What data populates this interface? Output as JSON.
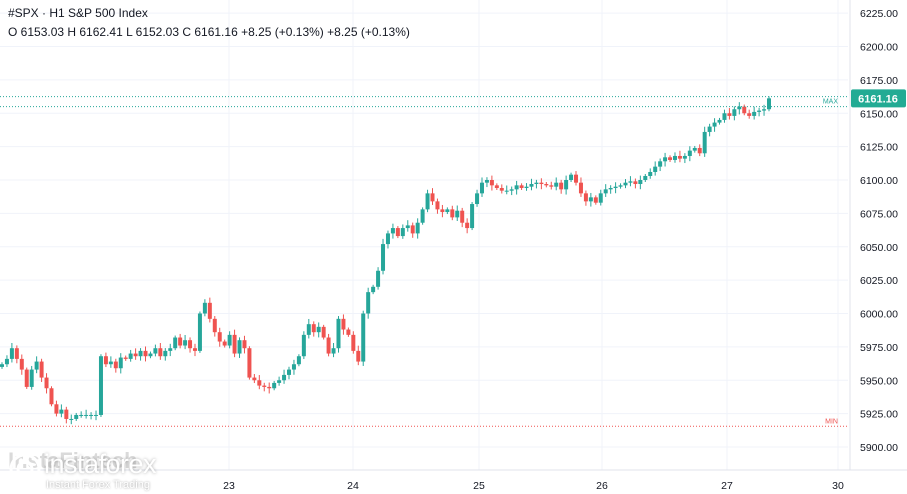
{
  "header": {
    "title": "#SPX · H1 S&P 500 Index",
    "ohlc": "O 6153.03 H 6162.41 L 6152.03 C 6161.16 +8.25 (+0.13%) +8.25 (+0.13%)"
  },
  "price_tag": "6161.16",
  "max_label": "MAX",
  "min_label": "MIN",
  "watermark": {
    "faded_text": "InstaFintech",
    "brand": "instaforex",
    "tagline": "Instant Forex Trading"
  },
  "colors": {
    "up": "#26a69a",
    "down": "#ef5350",
    "tag": "#22ab94",
    "grid": "#f0f3fa"
  },
  "chart_data": {
    "type": "candlestick",
    "y_ticks": [
      5900,
      5925,
      5950,
      5975,
      6000,
      6025,
      6050,
      6075,
      6100,
      6125,
      6150,
      6175,
      6200,
      6225
    ],
    "y_tick_labels": [
      "5900.00",
      "5925.00",
      "5950.00",
      "5975.00",
      "6000.00",
      "6025.00",
      "6050.00",
      "6075.00",
      "6100.00",
      "6125.00",
      "6150.00",
      "6175.00",
      "6200.00",
      "6225.00"
    ],
    "ylim": [
      5886,
      6234
    ],
    "x_labels": [
      "23",
      "24",
      "25",
      "26",
      "27",
      "30"
    ],
    "last_close": 6161.16,
    "max": 6162.41,
    "min": 5915.5,
    "max_line_2": 6155,
    "close_series": [
      5962,
      5966,
      5974,
      5966,
      5958,
      5945,
      5958,
      5964,
      5952,
      5944,
      5932,
      5925,
      5928,
      5921,
      5921,
      5924,
      5924,
      5924,
      5924,
      5924,
      5968,
      5962,
      5964,
      5959,
      5967,
      5966,
      5970,
      5968,
      5972,
      5968,
      5970,
      5974,
      5968,
      5972,
      5974,
      5982,
      5976,
      5980,
      5974,
      5972,
      6000,
      6008,
      5996,
      5986,
      5979,
      5976,
      5984,
      5970,
      5980,
      5974,
      5952,
      5950,
      5946,
      5945,
      5944,
      5948,
      5950,
      5954,
      5958,
      5962,
      5968,
      5984,
      5992,
      5986,
      5990,
      5982,
      5970,
      5974,
      5996,
      5988,
      5984,
      5972,
      5964,
      6000,
      6016,
      6020,
      6032,
      6052,
      6060,
      6064,
      6058,
      6064,
      6066,
      6060,
      6068,
      6078,
      6090,
      6084,
      6078,
      6076,
      6078,
      6072,
      6077,
      6068,
      6064,
      6082,
      6090,
      6098,
      6100,
      6096,
      6094,
      6092,
      6092,
      6093,
      6096,
      6094,
      6095,
      6097,
      6098,
      6097,
      6096,
      6095,
      6098,
      6093,
      6100,
      6104,
      6098,
      6090,
      6084,
      6087,
      6083,
      6090,
      6093,
      6094,
      6095,
      6096,
      6098,
      6099,
      6097,
      6100,
      6103,
      6106,
      6110,
      6114,
      6117,
      6115,
      6118,
      6116,
      6118,
      6122,
      6124,
      6120,
      6136,
      6140,
      6143,
      6145,
      6150,
      6148,
      6153,
      6155,
      6150,
      6148,
      6151,
      6152,
      6153,
      6161.16
    ]
  }
}
